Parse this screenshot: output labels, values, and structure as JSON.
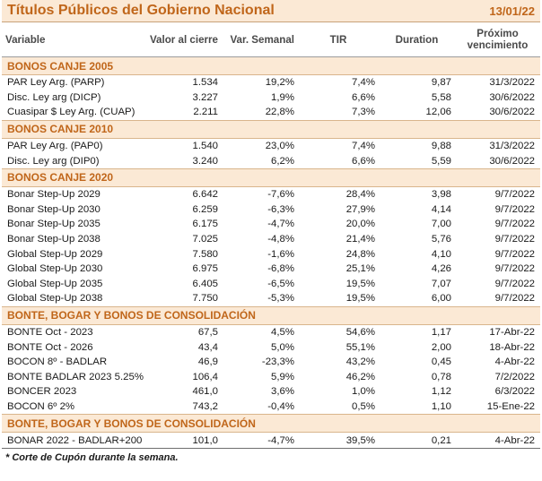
{
  "header": {
    "title": "Títulos Públicos del Gobierno Nacional",
    "date": "13/01/22"
  },
  "columns": [
    "Variable",
    "Valor al cierre",
    "Var. Semanal",
    "TIR",
    "Duration",
    "Próximo vencimiento"
  ],
  "sections": [
    {
      "name": "BONOS CANJE 2005",
      "rows": [
        [
          "PAR Ley Arg. (PARP)",
          "1.534",
          "19,2%",
          "7,4%",
          "9,87",
          "31/3/2022"
        ],
        [
          "Disc. Ley arg (DICP)",
          "3.227",
          "1,9%",
          "6,6%",
          "5,58",
          "30/6/2022"
        ],
        [
          "Cuasipar $ Ley Arg. (CUAP)",
          "2.211",
          "22,8%",
          "7,3%",
          "12,06",
          "30/6/2022"
        ]
      ]
    },
    {
      "name": "BONOS CANJE 2010",
      "rows": [
        [
          "PAR Ley Arg. (PAP0)",
          "1.540",
          "23,0%",
          "7,4%",
          "9,88",
          "31/3/2022"
        ],
        [
          "Disc. Ley arg (DIP0)",
          "3.240",
          "6,2%",
          "6,6%",
          "5,59",
          "30/6/2022"
        ]
      ]
    },
    {
      "name": "BONOS CANJE 2020",
      "rows": [
        [
          "Bonar Step-Up 2029",
          "6.642",
          "-7,6%",
          "28,4%",
          "3,98",
          "9/7/2022"
        ],
        [
          "Bonar Step-Up 2030",
          "6.259",
          "-6,3%",
          "27,9%",
          "4,14",
          "9/7/2022"
        ],
        [
          "Bonar Step-Up 2035",
          "6.175",
          "-4,7%",
          "20,0%",
          "7,00",
          "9/7/2022"
        ],
        [
          "Bonar Step-Up 2038",
          "7.025",
          "-4,8%",
          "21,4%",
          "5,76",
          "9/7/2022"
        ],
        [
          "Global Step-Up 2029",
          "7.580",
          "-1,6%",
          "24,8%",
          "4,10",
          "9/7/2022"
        ],
        [
          "Global Step-Up 2030",
          "6.975",
          "-6,8%",
          "25,1%",
          "4,26",
          "9/7/2022"
        ],
        [
          "Global Step-Up 2035",
          "6.405",
          "-6,5%",
          "19,5%",
          "7,07",
          "9/7/2022"
        ],
        [
          "Global Step-Up 2038",
          "7.750",
          "-5,3%",
          "19,5%",
          "6,00",
          "9/7/2022"
        ]
      ]
    },
    {
      "name": "BONTE, BOGAR Y BONOS DE CONSOLIDACIÓN",
      "rows": [
        [
          "BONTE Oct - 2023",
          "67,5",
          "4,5%",
          "54,6%",
          "1,17",
          "17-Abr-22"
        ],
        [
          "BONTE Oct - 2026",
          "43,4",
          "5,0%",
          "55,1%",
          "2,00",
          "18-Abr-22"
        ],
        [
          "BOCON 8º - BADLAR",
          "46,9",
          "-23,3%",
          "43,2%",
          "0,45",
          "4-Abr-22"
        ],
        [
          "BONTE BADLAR 2023 5.25%",
          "106,4",
          "5,9%",
          "46,2%",
          "0,78",
          "7/2/2022"
        ],
        [
          "BONCER 2023",
          "461,0",
          "3,6%",
          "1,0%",
          "1,12",
          "6/3/2022"
        ],
        [
          "BOCON 6º 2%",
          "743,2",
          "-0,4%",
          "0,5%",
          "1,10",
          "15-Ene-22"
        ]
      ]
    },
    {
      "name": "BONTE, BOGAR Y BONOS DE CONSOLIDACIÓN",
      "rows": [
        [
          "BONAR 2022 - BADLAR+200",
          "101,0",
          "-4,7%",
          "39,5%",
          "0,21",
          "4-Abr-22"
        ]
      ]
    }
  ],
  "footnote": "* Corte de Cupón durante la semana."
}
